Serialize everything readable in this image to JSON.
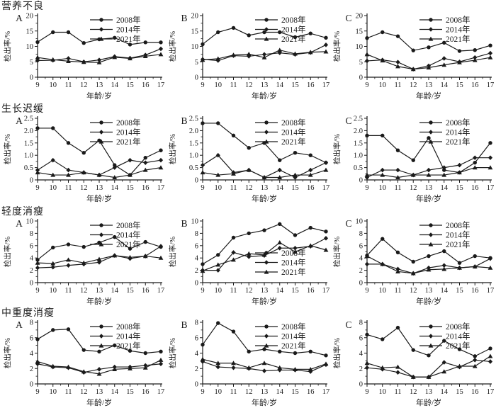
{
  "page": {
    "background": "#ffffff",
    "line_color": "#1a1a1a"
  },
  "axis_labels": {
    "y": "检出率/%",
    "x": "年龄/岁"
  },
  "legend_entries": [
    "2008年",
    "2014年",
    "2021年"
  ],
  "row_sections": [
    {
      "title": "营养不良"
    },
    {
      "title": "生长迟缓"
    },
    {
      "title": "轻度消瘦"
    },
    {
      "title": "中重度消瘦"
    }
  ],
  "chart_data": [
    {
      "type": "line",
      "row": "营养不良",
      "panel": "A",
      "xlabel": "年龄/岁",
      "ylabel": "检出率/%",
      "x": [
        9,
        10,
        11,
        12,
        13,
        14,
        15,
        16,
        17
      ],
      "ylim": [
        0,
        20
      ],
      "yticks": [
        0,
        5,
        10,
        15,
        20
      ],
      "ytick_labels": [
        "0",
        "5",
        "10",
        "15",
        "20"
      ],
      "legend_pos": "top-right",
      "grid": false,
      "series": [
        {
          "name": "2008年",
          "marker": "circle",
          "values": [
            11.4,
            14.6,
            14.6,
            11.1,
            12.3,
            12.8,
            10.6,
            11.3,
            11.3
          ]
        },
        {
          "name": "2014年",
          "marker": "diamond",
          "values": [
            5.4,
            5.5,
            6.1,
            5.0,
            5.6,
            6.7,
            6.2,
            7.2,
            9.2
          ]
        },
        {
          "name": "2021年",
          "marker": "triangle",
          "values": [
            6.4,
            5.7,
            5.2,
            4.9,
            4.8,
            6.5,
            6.1,
            6.8,
            7.4
          ]
        }
      ]
    },
    {
      "type": "line",
      "row": "营养不良",
      "panel": "B",
      "xlabel": "年龄/岁",
      "ylabel": "检出率/%",
      "x": [
        9,
        10,
        11,
        12,
        13,
        14,
        15,
        16,
        17
      ],
      "ylim": [
        0,
        20
      ],
      "yticks": [
        0,
        5,
        10,
        15,
        20
      ],
      "ytick_labels": [
        "0",
        "5",
        "10",
        "15",
        "20"
      ],
      "legend_pos": "top-right",
      "grid": false,
      "series": [
        {
          "name": "2008年",
          "marker": "circle",
          "values": [
            10.7,
            14.6,
            16.0,
            13.6,
            14.6,
            14.6,
            13.0,
            14.2,
            12.8
          ]
        },
        {
          "name": "2014年",
          "marker": "diamond",
          "values": [
            5.8,
            5.4,
            7.0,
            6.8,
            7.4,
            7.9,
            7.4,
            8.0,
            10.5
          ]
        },
        {
          "name": "2021年",
          "marker": "triangle",
          "values": [
            5.6,
            6.0,
            7.2,
            7.5,
            6.4,
            8.8,
            7.6,
            8.1,
            8.3
          ]
        }
      ]
    },
    {
      "type": "line",
      "row": "营养不良",
      "panel": "C",
      "xlabel": "年龄/岁",
      "ylabel": "检出率/%",
      "x": [
        9,
        10,
        11,
        12,
        13,
        14,
        15,
        16,
        17
      ],
      "ylim": [
        0,
        20
      ],
      "yticks": [
        0,
        5,
        10,
        15,
        20
      ],
      "ytick_labels": [
        "0",
        "5",
        "10",
        "15",
        "20"
      ],
      "legend_pos": "top-right",
      "grid": false,
      "series": [
        {
          "name": "2008年",
          "marker": "circle",
          "values": [
            12.7,
            14.6,
            13.3,
            8.7,
            9.7,
            11.2,
            8.5,
            8.8,
            10.3
          ]
        },
        {
          "name": "2014年",
          "marker": "diamond",
          "values": [
            5.3,
            5.6,
            4.9,
            2.6,
            3.7,
            6.1,
            5.0,
            6.4,
            7.8
          ]
        },
        {
          "name": "2021年",
          "marker": "triangle",
          "values": [
            7.4,
            5.4,
            3.5,
            2.6,
            3.1,
            4.0,
            4.8,
            5.5,
            6.4
          ]
        }
      ]
    },
    {
      "type": "line",
      "row": "生长迟缓",
      "panel": "A",
      "xlabel": "年龄/岁",
      "ylabel": "检出率/%",
      "x": [
        9,
        10,
        11,
        12,
        13,
        14,
        15,
        16,
        17
      ],
      "ylim": [
        0,
        2.5
      ],
      "yticks": [
        0,
        0.5,
        1.0,
        1.5,
        2.0,
        2.5
      ],
      "ytick_labels": [
        "0",
        "0.5",
        "1.0",
        "1.5",
        "2.0",
        "2.5"
      ],
      "legend_pos": "top-right",
      "grid": false,
      "series": [
        {
          "name": "2008年",
          "marker": "circle",
          "values": [
            2.1,
            2.1,
            1.5,
            1.1,
            1.6,
            0.6,
            0.2,
            0.9,
            1.2
          ]
        },
        {
          "name": "2014年",
          "marker": "diamond",
          "values": [
            0.4,
            0.8,
            0.4,
            0.3,
            0.2,
            0.5,
            0.8,
            0.7,
            0.8
          ]
        },
        {
          "name": "2021年",
          "marker": "triangle",
          "values": [
            0.3,
            0.2,
            0.2,
            0.3,
            0.2,
            0.1,
            0.2,
            0.4,
            0.5
          ]
        }
      ]
    },
    {
      "type": "line",
      "row": "生长迟缓",
      "panel": "B",
      "xlabel": "年龄/岁",
      "ylabel": "检出率/%",
      "x": [
        9,
        10,
        11,
        12,
        13,
        14,
        15,
        16,
        17
      ],
      "ylim": [
        0,
        2.5
      ],
      "yticks": [
        0,
        0.5,
        1.0,
        1.5,
        2.0,
        2.5
      ],
      "ytick_labels": [
        "0",
        "0.5",
        "1.0",
        "1.5",
        "2.0",
        "2.5"
      ],
      "legend_pos": "top-right",
      "grid": false,
      "series": [
        {
          "name": "2008年",
          "marker": "circle",
          "values": [
            2.3,
            2.3,
            1.8,
            1.3,
            1.5,
            0.8,
            1.1,
            1.0,
            0.7
          ]
        },
        {
          "name": "2014年",
          "marker": "diamond",
          "values": [
            0.6,
            1.0,
            0.3,
            0.4,
            0.1,
            0.4,
            0.1,
            0.4,
            0.7
          ]
        },
        {
          "name": "2021年",
          "marker": "triangle",
          "values": [
            0.3,
            0.2,
            0.25,
            0.4,
            0.1,
            0.1,
            0.2,
            0.2,
            0.4
          ]
        }
      ]
    },
    {
      "type": "line",
      "row": "生长迟缓",
      "panel": "C",
      "xlabel": "年龄/岁",
      "ylabel": "检出率/%",
      "x": [
        9,
        10,
        11,
        12,
        13,
        14,
        15,
        16,
        17
      ],
      "ylim": [
        0,
        2.5
      ],
      "yticks": [
        0,
        0.5,
        1.0,
        1.5,
        2.0,
        2.5
      ],
      "ytick_labels": [
        "0",
        "0.5",
        "1.0",
        "1.5",
        "2.0",
        "2.5"
      ],
      "legend_pos": "top-right",
      "grid": false,
      "series": [
        {
          "name": "2008年",
          "marker": "circle",
          "values": [
            1.8,
            1.8,
            1.2,
            0.8,
            1.7,
            0.4,
            0.3,
            0.7,
            1.5
          ]
        },
        {
          "name": "2014年",
          "marker": "diamond",
          "values": [
            0.1,
            0.4,
            0.4,
            0.2,
            0.4,
            0.5,
            0.6,
            0.9,
            0.9
          ]
        },
        {
          "name": "2021年",
          "marker": "triangle",
          "values": [
            0.2,
            0.2,
            0.1,
            0.2,
            0.2,
            0.2,
            0.3,
            0.5,
            0.5
          ]
        }
      ]
    },
    {
      "type": "line",
      "row": "轻度消瘦",
      "panel": "A",
      "xlabel": "年龄/岁",
      "ylabel": "检出率/%",
      "x": [
        9,
        10,
        11,
        12,
        13,
        14,
        15,
        16,
        17
      ],
      "ylim": [
        0,
        10
      ],
      "yticks": [
        0,
        2,
        4,
        6,
        8,
        10
      ],
      "ytick_labels": [
        "0",
        "2",
        "4",
        "6",
        "8",
        "10"
      ],
      "legend_pos": "top-right",
      "grid": false,
      "series": [
        {
          "name": "2008年",
          "marker": "circle",
          "values": [
            3.7,
            5.7,
            6.2,
            5.8,
            6.5,
            7.4,
            5.5,
            6.6,
            5.8
          ]
        },
        {
          "name": "2014年",
          "marker": "diamond",
          "values": [
            2.4,
            2.5,
            2.8,
            3.0,
            3.3,
            4.4,
            3.9,
            4.3,
            5.9
          ]
        },
        {
          "name": "2021年",
          "marker": "triangle",
          "values": [
            3.2,
            3.1,
            3.7,
            3.2,
            3.8,
            4.4,
            4.1,
            4.3,
            4.0
          ]
        }
      ]
    },
    {
      "type": "line",
      "row": "轻度消瘦",
      "panel": "B",
      "xlabel": "年龄/岁",
      "ylabel": "检出率/%",
      "x": [
        9,
        10,
        11,
        12,
        13,
        14,
        15,
        16,
        17
      ],
      "ylim": [
        0,
        10
      ],
      "yticks": [
        0,
        2,
        4,
        6,
        8,
        10
      ],
      "ytick_labels": [
        "0",
        "2",
        "4",
        "6",
        "8",
        "10"
      ],
      "legend_pos": "bottom-right",
      "grid": false,
      "series": [
        {
          "name": "2008年",
          "marker": "circle",
          "values": [
            3.0,
            4.5,
            7.3,
            8.0,
            8.5,
            9.5,
            7.7,
            8.9,
            8.3
          ]
        },
        {
          "name": "2014年",
          "marker": "diamond",
          "values": [
            2.0,
            2.0,
            4.9,
            4.2,
            4.4,
            5.6,
            5.6,
            5.9,
            7.2
          ]
        },
        {
          "name": "2021年",
          "marker": "triangle",
          "values": [
            1.9,
            2.9,
            3.7,
            4.7,
            4.5,
            6.5,
            5.0,
            6.0,
            5.3
          ]
        }
      ]
    },
    {
      "type": "line",
      "row": "轻度消瘦",
      "panel": "C",
      "xlabel": "年龄/岁",
      "ylabel": "检出率/%",
      "x": [
        9,
        10,
        11,
        12,
        13,
        14,
        15,
        16,
        17
      ],
      "ylim": [
        0,
        10
      ],
      "yticks": [
        0,
        2,
        4,
        6,
        8,
        10
      ],
      "ytick_labels": [
        "0",
        "2",
        "4",
        "6",
        "8",
        "10"
      ],
      "legend_pos": "top-right",
      "grid": false,
      "series": [
        {
          "name": "2008年",
          "marker": "circle",
          "values": [
            4.4,
            7.1,
            4.9,
            3.4,
            4.3,
            5.1,
            3.2,
            4.3,
            4.0
          ]
        },
        {
          "name": "2014年",
          "marker": "diamond",
          "values": [
            3.0,
            3.0,
            2.2,
            1.5,
            2.4,
            2.8,
            2.4,
            2.6,
            3.9
          ]
        },
        {
          "name": "2021年",
          "marker": "triangle",
          "values": [
            4.3,
            3.0,
            1.8,
            1.5,
            2.1,
            2.2,
            2.4,
            2.6,
            2.4
          ]
        }
      ]
    },
    {
      "type": "line",
      "row": "中重度消瘦",
      "panel": "A",
      "xlabel": "年龄/岁",
      "ylabel": "检出率/%",
      "x": [
        9,
        10,
        11,
        12,
        13,
        14,
        15,
        16,
        17
      ],
      "ylim": [
        0,
        8
      ],
      "yticks": [
        0,
        2,
        4,
        6,
        8
      ],
      "ytick_labels": [
        "0",
        "2",
        "4",
        "6",
        "8"
      ],
      "legend_pos": "top-right",
      "grid": false,
      "series": [
        {
          "name": "2008年",
          "marker": "circle",
          "values": [
            5.8,
            7.0,
            7.1,
            4.4,
            4.2,
            5.0,
            4.3,
            4.0,
            4.2
          ]
        },
        {
          "name": "2014年",
          "marker": "diamond",
          "values": [
            2.6,
            2.2,
            2.1,
            1.5,
            1.9,
            2.2,
            2.2,
            2.4,
            2.6
          ]
        },
        {
          "name": "2021年",
          "marker": "triangle",
          "values": [
            2.9,
            2.3,
            2.2,
            1.6,
            1.3,
            1.9,
            2.0,
            2.1,
            3.1
          ]
        }
      ]
    },
    {
      "type": "line",
      "row": "中重度消瘦",
      "panel": "B",
      "xlabel": "年龄/岁",
      "ylabel": "检出率/%",
      "x": [
        9,
        10,
        11,
        12,
        13,
        14,
        15,
        16,
        17
      ],
      "ylim": [
        0,
        8
      ],
      "yticks": [
        0,
        2,
        4,
        6,
        8
      ],
      "ytick_labels": [
        "0",
        "2",
        "4",
        "6",
        "8"
      ],
      "legend_pos": "top-right",
      "grid": false,
      "series": [
        {
          "name": "2008年",
          "marker": "circle",
          "values": [
            5.1,
            7.9,
            6.8,
            4.2,
            4.5,
            4.2,
            4.0,
            4.2,
            3.7
          ]
        },
        {
          "name": "2014年",
          "marker": "diamond",
          "values": [
            2.9,
            2.2,
            2.1,
            2.0,
            1.7,
            1.8,
            1.8,
            1.6,
            2.5
          ]
        },
        {
          "name": "2021年",
          "marker": "triangle",
          "values": [
            3.2,
            2.7,
            2.7,
            2.1,
            2.7,
            2.1,
            1.9,
            1.9,
            2.6
          ]
        }
      ]
    },
    {
      "type": "line",
      "row": "中重度消瘦",
      "panel": "C",
      "xlabel": "年龄/岁",
      "ylabel": "检出率/%",
      "x": [
        9,
        10,
        11,
        12,
        13,
        14,
        15,
        16,
        17
      ],
      "ylim": [
        0,
        8
      ],
      "yticks": [
        0,
        2,
        4,
        6,
        8
      ],
      "ytick_labels": [
        "0",
        "2",
        "4",
        "6",
        "8"
      ],
      "legend_pos": "top-right",
      "grid": false,
      "series": [
        {
          "name": "2008年",
          "marker": "circle",
          "values": [
            6.4,
            5.8,
            7.3,
            4.4,
            3.7,
            5.6,
            4.5,
            3.6,
            4.6
          ]
        },
        {
          "name": "2014年",
          "marker": "diamond",
          "values": [
            2.1,
            1.9,
            1.5,
            0.9,
            0.9,
            2.8,
            2.2,
            3.1,
            2.9
          ]
        },
        {
          "name": "2021年",
          "marker": "triangle",
          "values": [
            2.7,
            2.1,
            2.2,
            0.9,
            0.9,
            1.6,
            2.3,
            2.3,
            3.6
          ]
        }
      ]
    }
  ]
}
